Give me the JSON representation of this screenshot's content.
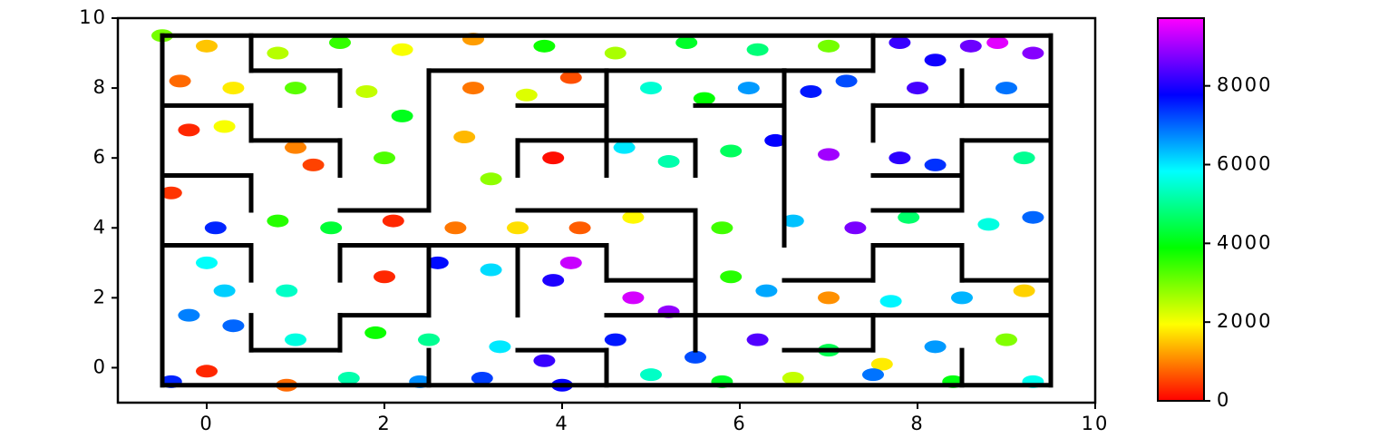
{
  "chart_data": {
    "type": "scatter",
    "x": [
      -0.5,
      0,
      0.8,
      1.5,
      2.2,
      3.0,
      3.8,
      4.6,
      5.4,
      6.2,
      7.0,
      7.8,
      8.6,
      8.9,
      9.3,
      8.2,
      -0.3,
      0.3,
      1.0,
      1.8,
      2.2,
      3.0,
      3.6,
      4.1,
      5.0,
      5.6,
      6.1,
      6.8,
      7.2,
      8.0,
      9.0,
      -0.2,
      0.2,
      1.0,
      1.2,
      2.0,
      2.9,
      3.2,
      3.9,
      4.7,
      5.2,
      5.9,
      6.4,
      7.0,
      7.8,
      8.2,
      9.2,
      -0.4,
      0.1,
      0.8,
      1.4,
      2.1,
      2.8,
      3.5,
      4.2,
      4.8,
      5.8,
      6.6,
      7.3,
      7.9,
      8.8,
      9.3,
      0.0,
      0.2,
      0.9,
      2.0,
      2.6,
      3.2,
      3.9,
      4.1,
      4.8,
      5.2,
      5.9,
      6.3,
      7.0,
      7.7,
      8.5,
      9.2,
      -0.2,
      0.3,
      1.0,
      1.9,
      2.5,
      3.3,
      3.8,
      4.6,
      5.5,
      6.2,
      7.0,
      7.6,
      8.2,
      9.0,
      -0.4,
      0.0,
      0.9,
      1.6,
      2.4,
      3.1,
      4.0,
      5.0,
      5.8,
      6.6,
      7.5,
      8.4,
      9.3
    ],
    "y": [
      9.5,
      9.2,
      9.0,
      9.3,
      9.1,
      9.4,
      9.2,
      9.0,
      9.3,
      9.1,
      9.2,
      9.3,
      9.2,
      9.3,
      9.0,
      8.8,
      8.2,
      8.0,
      8.0,
      7.9,
      7.2,
      8.0,
      7.8,
      8.3,
      8.0,
      7.7,
      8.0,
      7.9,
      8.2,
      8.0,
      8.0,
      6.8,
      6.9,
      6.3,
      5.8,
      6.0,
      6.6,
      5.4,
      6.0,
      6.3,
      5.9,
      6.2,
      6.5,
      6.1,
      6.0,
      5.8,
      6.0,
      5.0,
      4.0,
      4.2,
      4.0,
      4.2,
      4.0,
      4.0,
      4.0,
      4.3,
      4.0,
      4.2,
      4.0,
      4.3,
      4.1,
      4.3,
      3.0,
      2.2,
      2.2,
      2.6,
      3.0,
      2.8,
      2.5,
      3.0,
      2.0,
      1.6,
      2.6,
      2.2,
      2.0,
      1.9,
      2.0,
      2.2,
      1.5,
      1.2,
      0.8,
      1.0,
      0.8,
      0.6,
      0.2,
      0.8,
      0.3,
      0.8,
      0.5,
      0.1,
      0.6,
      0.8,
      -0.4,
      -0.1,
      -0.5,
      -0.3,
      -0.4,
      -0.3,
      -0.5,
      -0.2,
      -0.4,
      -0.3,
      -0.2,
      -0.4,
      -0.4
    ],
    "c": [
      3000,
      1500,
      2500,
      3500,
      2000,
      1200,
      3800,
      2600,
      4200,
      4800,
      3000,
      8200,
      8600,
      9500,
      8800,
      7900,
      800,
      1800,
      3200,
      2400,
      4100,
      900,
      2200,
      600,
      5500,
      3900,
      6600,
      7600,
      7200,
      8300,
      6900,
      300,
      2000,
      1000,
      500,
      3300,
      1400,
      2800,
      100,
      6000,
      5200,
      4600,
      7800,
      9000,
      8100,
      7400,
      5000,
      400,
      7500,
      3600,
      4300,
      300,
      900,
      1700,
      700,
      1900,
      3400,
      6300,
      8700,
      4700,
      5600,
      7000,
      5800,
      6200,
      5400,
      300,
      7700,
      6100,
      8000,
      9300,
      9400,
      8900,
      3600,
      6500,
      1100,
      5900,
      6400,
      1600,
      6800,
      7000,
      5600,
      3800,
      5000,
      6000,
      8200,
      7600,
      7200,
      8400,
      4500,
      1800,
      6600,
      2900,
      7500,
      300,
      800,
      5200,
      6700,
      7300,
      7800,
      5400,
      4200,
      2400,
      6900,
      4000,
      5700
    ],
    "colormap": "hsv",
    "walls": [
      [
        -0.5,
        -0.5,
        -0.5,
        9.5
      ],
      [
        -0.5,
        9.5,
        9.5,
        9.5
      ],
      [
        9.5,
        9.5,
        9.5,
        -0.5
      ],
      [
        -0.5,
        -0.5,
        9.5,
        -0.5
      ],
      [
        0.5,
        9.5,
        0.5,
        8.5
      ],
      [
        0.5,
        8.5,
        1.5,
        8.5
      ],
      [
        1.5,
        8.5,
        1.5,
        7.5
      ],
      [
        -0.5,
        7.5,
        0.5,
        7.5
      ],
      [
        0.5,
        7.5,
        0.5,
        6.5
      ],
      [
        0.5,
        6.5,
        1.5,
        6.5
      ],
      [
        1.5,
        6.5,
        1.5,
        5.5
      ],
      [
        -0.5,
        5.5,
        0.5,
        5.5
      ],
      [
        0.5,
        5.5,
        0.5,
        4.5
      ],
      [
        -0.5,
        3.5,
        0.5,
        3.5
      ],
      [
        0.5,
        3.5,
        0.5,
        2.5
      ],
      [
        0.5,
        1.5,
        0.5,
        0.5
      ],
      [
        0.5,
        0.5,
        1.5,
        0.5
      ],
      [
        1.5,
        1.5,
        1.5,
        0.5
      ],
      [
        2.5,
        8.5,
        2.5,
        4.5
      ],
      [
        2.5,
        8.5,
        6.5,
        8.5
      ],
      [
        1.5,
        4.5,
        2.5,
        4.5
      ],
      [
        1.5,
        3.5,
        4.5,
        3.5
      ],
      [
        1.5,
        3.5,
        1.5,
        2.5
      ],
      [
        2.5,
        3.5,
        2.5,
        1.5
      ],
      [
        1.5,
        1.5,
        2.5,
        1.5
      ],
      [
        2.5,
        0.5,
        2.5,
        -0.5
      ],
      [
        3.5,
        6.5,
        3.5,
        5.5
      ],
      [
        3.5,
        6.5,
        5.5,
        6.5
      ],
      [
        5.5,
        6.5,
        5.5,
        5.5
      ],
      [
        4.5,
        8.5,
        4.5,
        5.5
      ],
      [
        3.5,
        7.5,
        4.5,
        7.5
      ],
      [
        3.5,
        4.5,
        5.5,
        4.5
      ],
      [
        5.5,
        4.5,
        5.5,
        0.5
      ],
      [
        3.5,
        3.5,
        3.5,
        1.5
      ],
      [
        4.5,
        3.5,
        4.5,
        2.5
      ],
      [
        4.5,
        2.5,
        5.5,
        2.5
      ],
      [
        4.5,
        1.5,
        7.5,
        1.5
      ],
      [
        3.5,
        0.5,
        4.5,
        0.5
      ],
      [
        4.5,
        0.5,
        4.5,
        -0.5
      ],
      [
        6.5,
        8.5,
        6.5,
        3.5
      ],
      [
        5.5,
        7.5,
        6.5,
        7.5
      ],
      [
        7.5,
        9.5,
        7.5,
        8.5
      ],
      [
        6.5,
        8.5,
        7.5,
        8.5
      ],
      [
        7.5,
        7.5,
        9.5,
        7.5
      ],
      [
        7.5,
        7.5,
        7.5,
        6.5
      ],
      [
        8.5,
        8.5,
        8.5,
        7.5
      ],
      [
        8.5,
        6.5,
        9.5,
        6.5
      ],
      [
        8.5,
        6.5,
        8.5,
        4.5
      ],
      [
        7.5,
        5.5,
        8.5,
        5.5
      ],
      [
        7.5,
        4.5,
        8.5,
        4.5
      ],
      [
        7.5,
        3.5,
        8.5,
        3.5
      ],
      [
        7.5,
        3.5,
        7.5,
        2.5
      ],
      [
        6.5,
        2.5,
        7.5,
        2.5
      ],
      [
        8.5,
        3.5,
        8.5,
        2.5
      ],
      [
        8.5,
        2.5,
        9.5,
        2.5
      ],
      [
        7.5,
        1.5,
        9.5,
        1.5
      ],
      [
        7.5,
        1.5,
        7.5,
        0.5
      ],
      [
        6.5,
        0.5,
        7.5,
        0.5
      ],
      [
        8.5,
        0.5,
        8.5,
        -0.5
      ]
    ],
    "xlim": [
      -1,
      10
    ],
    "ylim": [
      -1,
      10
    ],
    "xticks": [
      0,
      2,
      4,
      6,
      8,
      10
    ],
    "yticks": [
      0,
      2,
      4,
      6,
      8,
      10
    ],
    "clim": [
      0,
      9720
    ],
    "cticks": [
      0,
      2000,
      4000,
      6000,
      8000
    ]
  }
}
